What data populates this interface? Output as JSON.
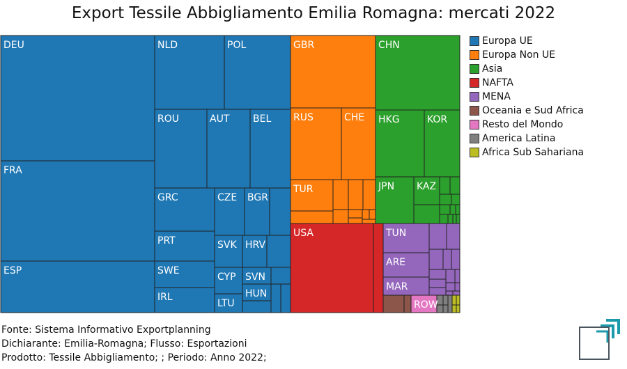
{
  "chart_data": {
    "type": "treemap",
    "title": "Export Tessile Abbigliamento Emilia Romagna: mercati 2022",
    "groups": [
      {
        "name": "Europa UE",
        "color": "#1f77b4",
        "items": [
          {
            "label": "DEU",
            "value": 64.4
          },
          {
            "label": "FRA",
            "value": 56.3
          },
          {
            "label": "ESP",
            "value": 29.2
          },
          {
            "label": "NLD",
            "value": 19.9
          },
          {
            "label": "POL",
            "value": 17.8
          },
          {
            "label": "ROU",
            "value": 15.0
          },
          {
            "label": "AUT",
            "value": 12.5
          },
          {
            "label": "BEL",
            "value": 11.5
          },
          {
            "label": "GRC",
            "value": 11.2
          },
          {
            "label": "PRT",
            "value": 7.4
          },
          {
            "label": "SWE",
            "value": 6.3
          },
          {
            "label": "IRL",
            "value": 5.5
          },
          {
            "label": "CZE",
            "value": 5.6
          },
          {
            "label": "BGR",
            "value": 5.0
          },
          {
            "label": "SVK",
            "value": 3.9
          },
          {
            "label": "HRV",
            "value": 3.6
          },
          {
            "label": "CYP",
            "value": 2.9
          },
          {
            "label": "SVN",
            "value": 2.3
          },
          {
            "label": "LTU",
            "value": 2.6
          },
          {
            "label": "HUN",
            "value": 2.5
          }
        ]
      },
      {
        "name": "Europa Non UE",
        "color": "#ff7f0e",
        "items": [
          {
            "label": "GBR",
            "value": 33.6
          },
          {
            "label": "RUS",
            "value": 19.8
          },
          {
            "label": "CHE",
            "value": 13.5
          },
          {
            "label": "TUR",
            "value": 8.1
          }
        ]
      },
      {
        "name": "Asia",
        "color": "#2ca02c",
        "items": [
          {
            "label": "CHN",
            "value": 34.1
          },
          {
            "label": "HKG",
            "value": 17.8
          },
          {
            "label": "KOR",
            "value": 13.3
          },
          {
            "label": "JPN",
            "value": 9.3
          },
          {
            "label": "KAZ",
            "value": 4.2
          }
        ]
      },
      {
        "name": "NAFTA",
        "color": "#d62728",
        "items": [
          {
            "label": "USA",
            "value": 40.8
          }
        ]
      },
      {
        "name": "MENA",
        "color": "#9467bd",
        "items": [
          {
            "label": "TUN",
            "value": 6.6
          },
          {
            "label": "ARE",
            "value": 5.8
          },
          {
            "label": "MAR",
            "value": 4.2
          }
        ]
      },
      {
        "name": "Oceania e Sud Africa",
        "color": "#8c564b",
        "items": []
      },
      {
        "name": "Resto del Mondo",
        "color": "#e377c2",
        "items": [
          {
            "label": "ROW",
            "value": 2.2
          }
        ]
      },
      {
        "name": "America Latina",
        "color": "#7f7f7f",
        "items": []
      },
      {
        "name": "Africa Sub Sahariana",
        "color": "#bcbd22",
        "items": []
      }
    ],
    "legend_position": "right"
  },
  "legend": [
    {
      "label": "Europa UE",
      "color": "#1f77b4"
    },
    {
      "label": "Europa Non UE",
      "color": "#ff7f0e"
    },
    {
      "label": "Asia",
      "color": "#2ca02c"
    },
    {
      "label": "NAFTA",
      "color": "#d62728"
    },
    {
      "label": "MENA",
      "color": "#9467bd"
    },
    {
      "label": "Oceania e Sud Africa",
      "color": "#8c564b"
    },
    {
      "label": "Resto del Mondo",
      "color": "#e377c2"
    },
    {
      "label": "America Latina",
      "color": "#7f7f7f"
    },
    {
      "label": "Africa Sub Sahariana",
      "color": "#bcbd22"
    }
  ],
  "footer": {
    "source": "Fonte: Sistema Informativo Exportplanning",
    "declarant": "Dichiarante: Emilia-Romagna; Flusso: Esportazioni",
    "product": "Prodotto: Tessile Abbigliamento; ; Periodo: Anno 2022;"
  },
  "logo": {
    "icon": "exportplanning-logo-icon",
    "colors": [
      "#1a9aaa",
      "#4a5560"
    ]
  }
}
